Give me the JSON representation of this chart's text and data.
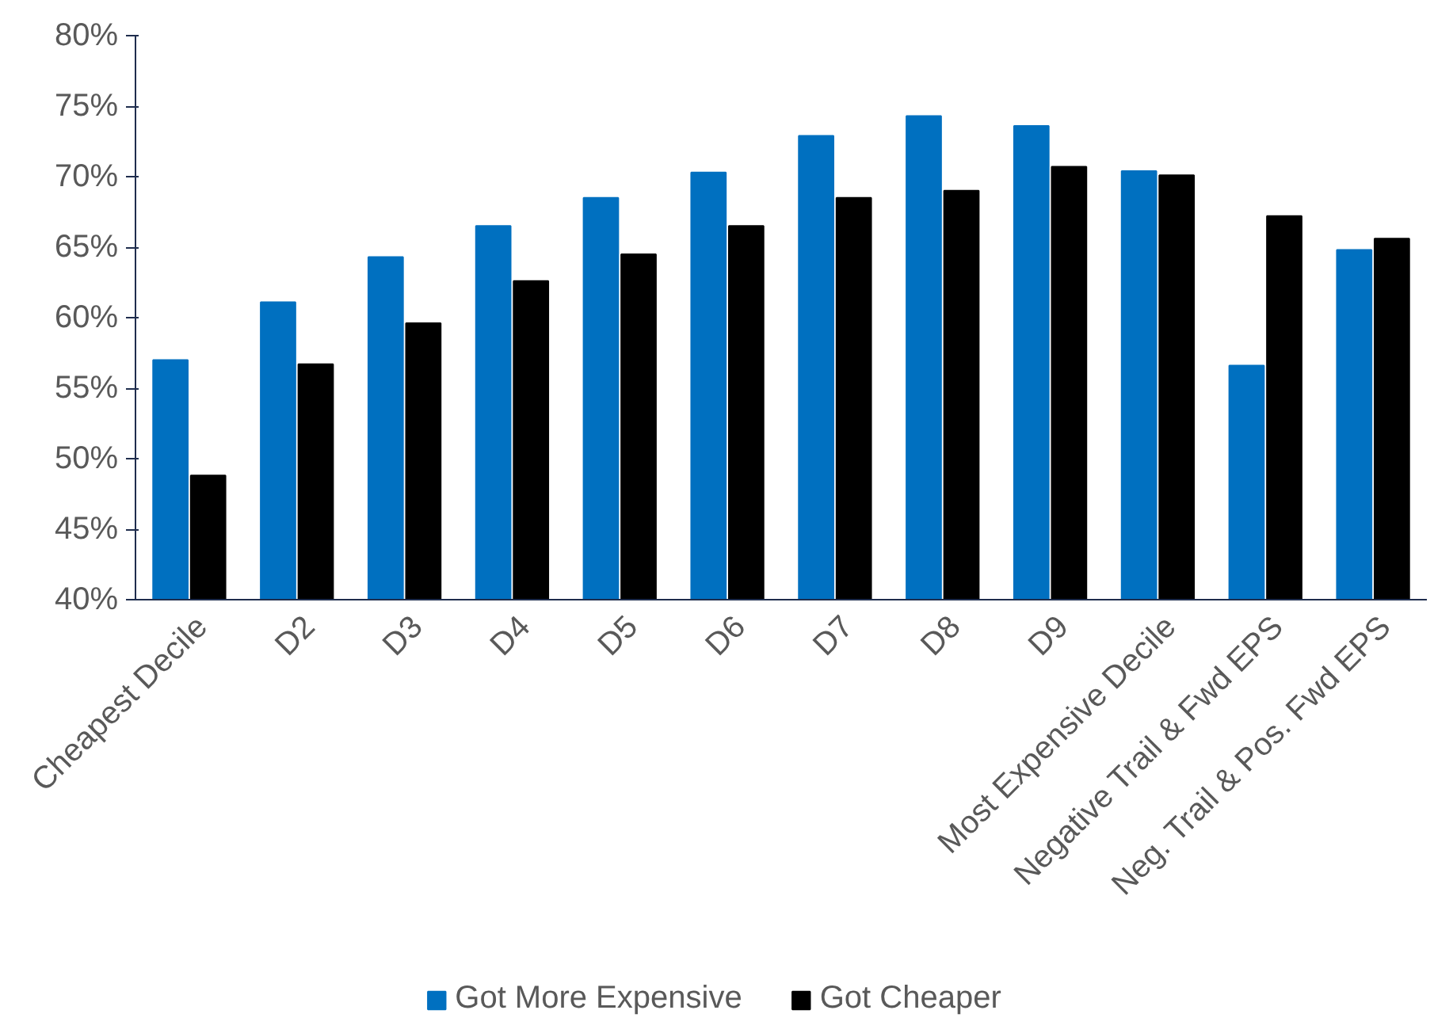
{
  "chart_data": {
    "type": "bar",
    "categories": [
      "Cheapest Decile",
      "D2",
      "D3",
      "D4",
      "D5",
      "D6",
      "D7",
      "D8",
      "D9",
      "Most Expensive Decile",
      "Negative Trail & Fwd EPS",
      "Neg. Trail & Pos. Fwd EPS"
    ],
    "series": [
      {
        "name": "Got More Expensive",
        "color": "#0070c0",
        "values": [
          57.0,
          61.1,
          64.3,
          66.5,
          68.5,
          70.3,
          72.9,
          74.3,
          73.6,
          70.4,
          56.6,
          64.8
        ]
      },
      {
        "name": "Got Cheaper",
        "color": "#000000",
        "values": [
          48.8,
          56.7,
          59.6,
          62.6,
          64.5,
          66.5,
          68.5,
          69.0,
          70.7,
          70.1,
          67.2,
          65.6
        ]
      }
    ],
    "ylim": [
      40,
      80
    ],
    "yticks": [
      {
        "value": 40,
        "label": "40%"
      },
      {
        "value": 45,
        "label": "45%"
      },
      {
        "value": 50,
        "label": "50%"
      },
      {
        "value": 55,
        "label": "55%"
      },
      {
        "value": 60,
        "label": "60%"
      },
      {
        "value": 65,
        "label": "65%"
      },
      {
        "value": 70,
        "label": "70%"
      },
      {
        "value": 75,
        "label": "75%"
      },
      {
        "value": 80,
        "label": "80%"
      }
    ],
    "grid": false,
    "legend": "bottom"
  }
}
